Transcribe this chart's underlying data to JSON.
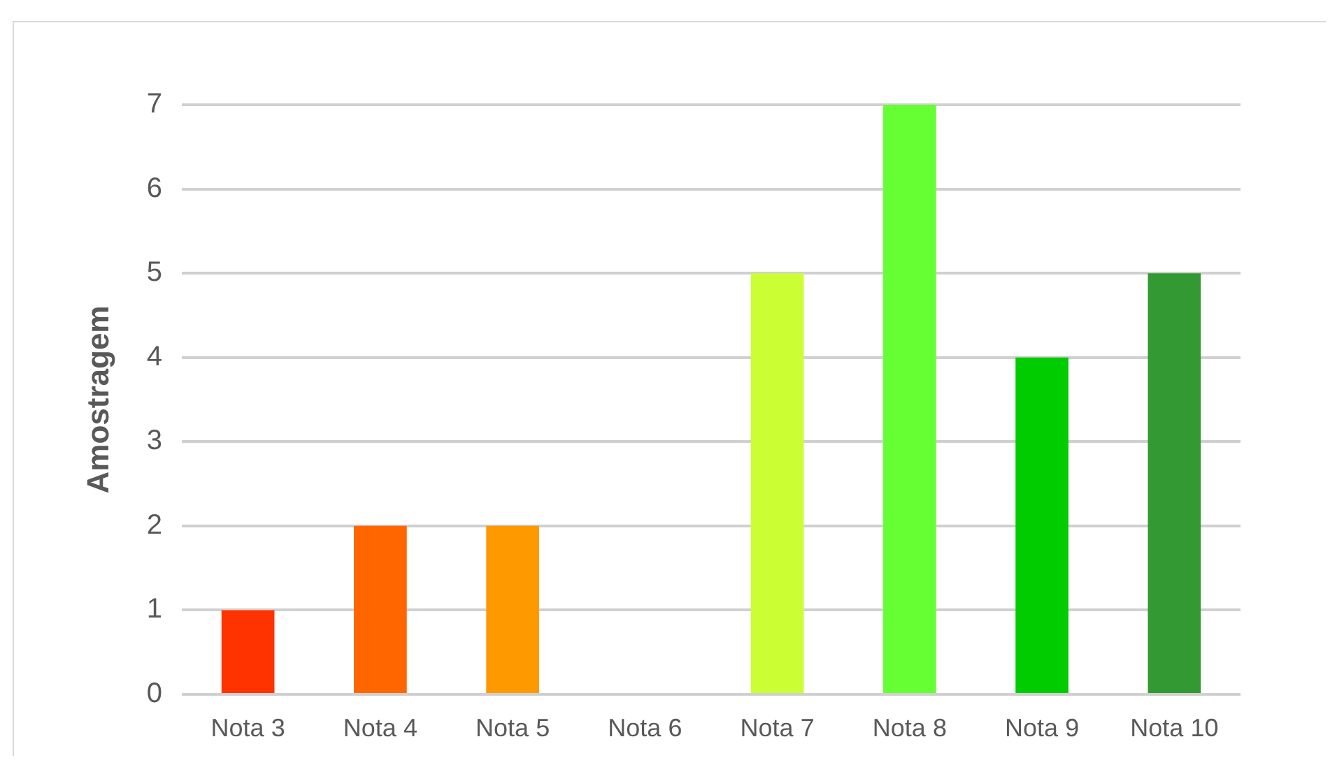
{
  "chart_data": {
    "type": "bar",
    "ylabel": "Amostragem",
    "categories": [
      "Nota 3",
      "Nota 4",
      "Nota 5",
      "Nota 6",
      "Nota 7",
      "Nota 8",
      "Nota 9",
      "Nota 10"
    ],
    "values": [
      1,
      2,
      2,
      0,
      5,
      7,
      4,
      5
    ],
    "colors": [
      "#ff3300",
      "#ff6600",
      "#ff9900",
      "#c8c800",
      "#ccff33",
      "#66ff33",
      "#00cc00",
      "#339933"
    ],
    "ylim": [
      0,
      7
    ],
    "yticks": [
      0,
      1,
      2,
      3,
      4,
      5,
      6,
      7
    ],
    "grid": "y"
  }
}
